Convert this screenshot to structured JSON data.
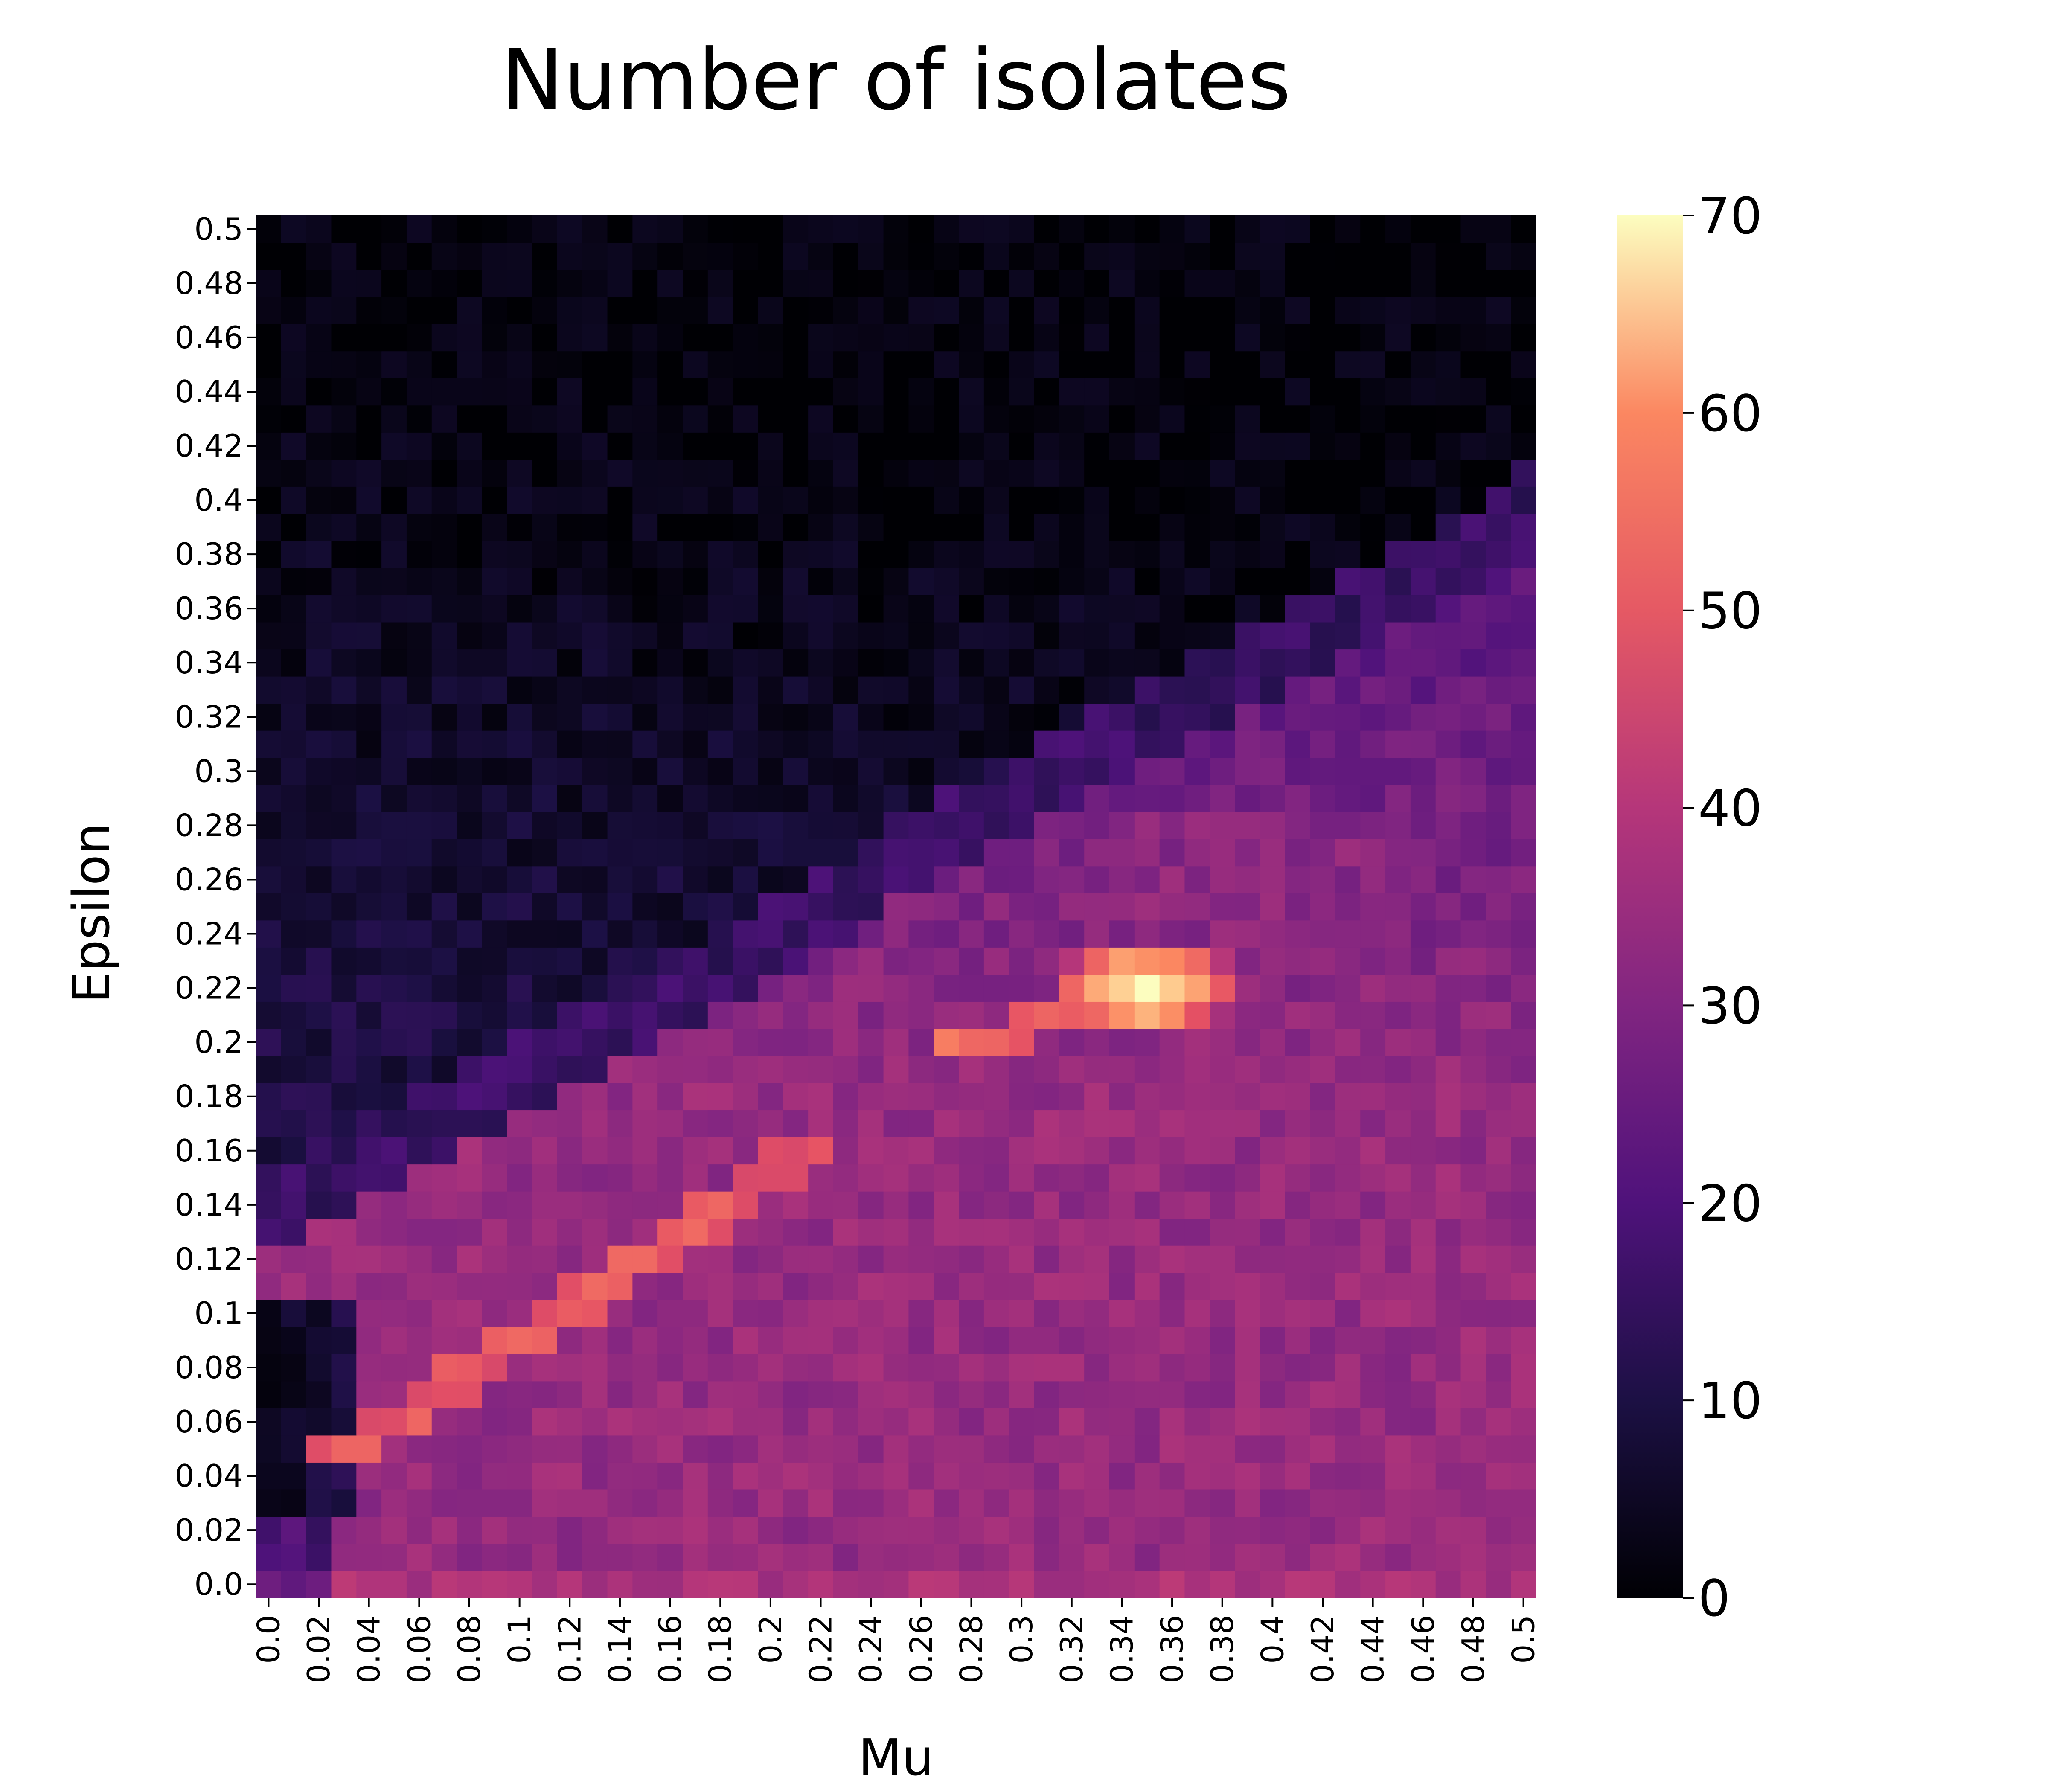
{
  "chart_data": {
    "type": "heatmap",
    "title": "Number of isolates",
    "xlabel": "Mu",
    "ylabel": "Epsilon",
    "colormap": "magma",
    "vmin": 0,
    "vmax": 70,
    "x_range": [
      0.0,
      0.5
    ],
    "y_range": [
      0.0,
      0.5
    ],
    "grid_resolution": 0.01,
    "x_tick_labels": [
      "0.0",
      "0.02",
      "0.04",
      "0.06",
      "0.08",
      "0.1",
      "0.12",
      "0.14",
      "0.16",
      "0.18",
      "0.2",
      "0.22",
      "0.24",
      "0.26",
      "0.28",
      "0.3",
      "0.32",
      "0.34",
      "0.36",
      "0.38",
      "0.4",
      "0.42",
      "0.44",
      "0.46",
      "0.48",
      "0.5"
    ],
    "y_tick_labels": [
      "0.0",
      "0.02",
      "0.04",
      "0.06",
      "0.08",
      "0.1",
      "0.12",
      "0.14",
      "0.16",
      "0.18",
      "0.2",
      "0.22",
      "0.24",
      "0.26",
      "0.28",
      "0.3",
      "0.32",
      "0.34",
      "0.36",
      "0.38",
      "0.4",
      "0.42",
      "0.44",
      "0.46",
      "0.48",
      "0.5"
    ],
    "colorbar_ticks": [
      "0",
      "10",
      "20",
      "30",
      "40",
      "50",
      "60",
      "70"
    ],
    "approx_features": {
      "background_top_right": 1,
      "upper_left_region": 7,
      "lower_region": 32,
      "bottom_row_eps_0": 33,
      "ridge_line_1": {
        "from": [
          0.05,
          0.06
        ],
        "to": [
          0.19,
          0.145
        ],
        "value": 45
      },
      "ridge_line_2": {
        "from": [
          0.19,
          0.145
        ],
        "to": [
          0.22,
          0.16
        ],
        "value": 40
      },
      "peak": {
        "mu": 0.35,
        "epsilon": 0.22,
        "value": 70
      }
    }
  }
}
